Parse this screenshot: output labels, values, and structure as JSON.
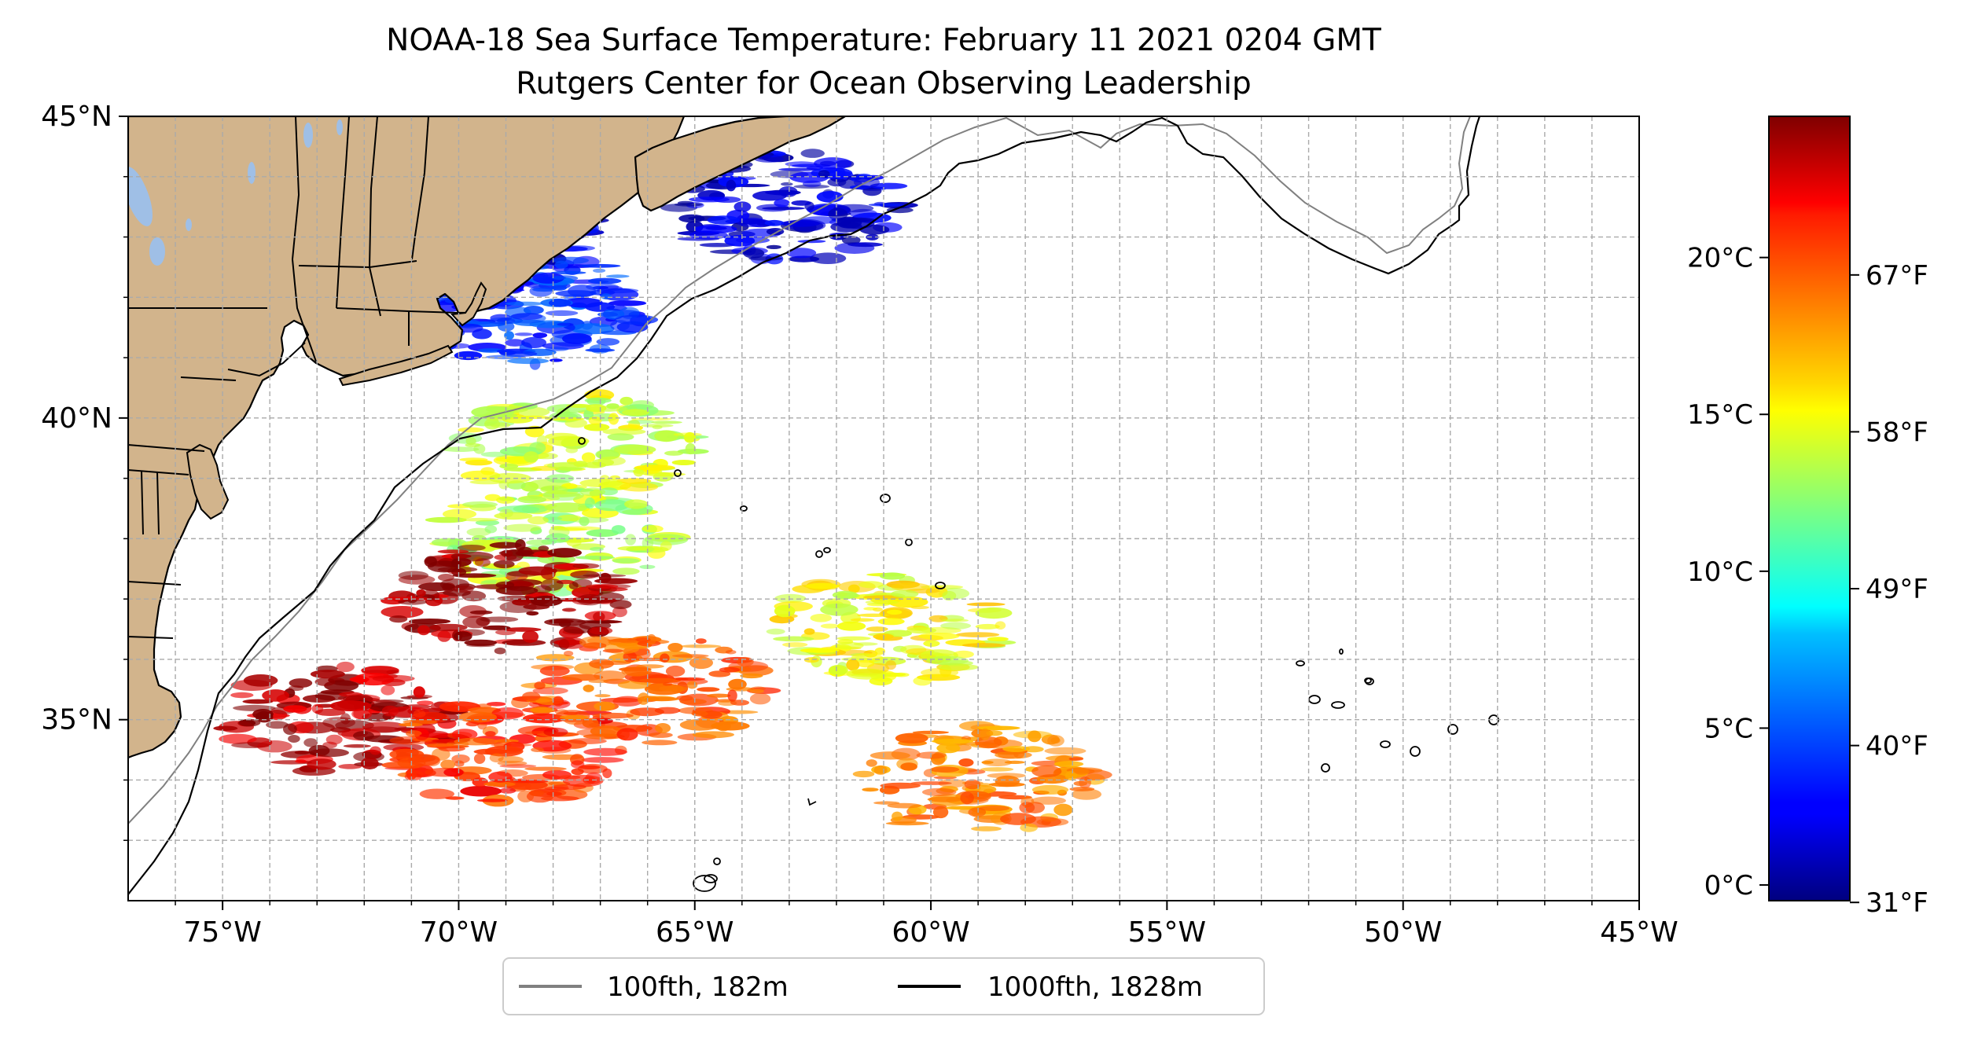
{
  "title": {
    "line1": "NOAA-18 Sea Surface Temperature: February 11 2021 0204 GMT",
    "line2": "Rutgers Center for Ocean Observing Leadership"
  },
  "map": {
    "lon_range": [
      -77,
      -45
    ],
    "lat_range": [
      32,
      45
    ],
    "x_ticks": [
      {
        "value": -75,
        "label": "75°W"
      },
      {
        "value": -70,
        "label": "70°W"
      },
      {
        "value": -65,
        "label": "65°W"
      },
      {
        "value": -60,
        "label": "60°W"
      },
      {
        "value": -55,
        "label": "55°W"
      },
      {
        "value": -50,
        "label": "50°W"
      },
      {
        "value": -45,
        "label": "45°W"
      }
    ],
    "y_ticks": [
      {
        "value": 45,
        "label": "45°N"
      },
      {
        "value": 40,
        "label": "40°N"
      },
      {
        "value": 35,
        "label": "35°N"
      }
    ],
    "grid": true,
    "colors": {
      "land": "#d2b48c",
      "shelf_100fth": "#808080",
      "slope_1000fth": "#000000"
    },
    "sst_patches": [
      {
        "lon": -69.5,
        "lat": 43.0,
        "sst": 2.0
      },
      {
        "lon": -63.0,
        "lat": 43.5,
        "sst": 1.5
      },
      {
        "lon": -68.5,
        "lat": 41.8,
        "sst": 4.0
      },
      {
        "lon": -67.5,
        "lat": 39.5,
        "sst": 14.0
      },
      {
        "lon": -68.0,
        "lat": 38.0,
        "sst": 13.5
      },
      {
        "lon": -69.0,
        "lat": 37.0,
        "sst": 24.0
      },
      {
        "lon": -72.5,
        "lat": 35.0,
        "sst": 23.5
      },
      {
        "lon": -69.0,
        "lat": 34.5,
        "sst": 20.5
      },
      {
        "lon": -66.0,
        "lat": 35.5,
        "sst": 19.5
      },
      {
        "lon": -59.0,
        "lat": 34.0,
        "sst": 18.5
      },
      {
        "lon": -61.0,
        "lat": 36.5,
        "sst": 15.0
      }
    ]
  },
  "legend": [
    {
      "label": "100fth, 182m",
      "color": "#808080"
    },
    {
      "label": "1000fth, 1828m",
      "color": "#000000"
    }
  ],
  "colorbar": {
    "range_c": [
      -0.5,
      24.5
    ],
    "celsius_ticks": [
      {
        "value": 0,
        "label": "0°C"
      },
      {
        "value": 5,
        "label": "5°C"
      },
      {
        "value": 10,
        "label": "10°C"
      },
      {
        "value": 15,
        "label": "15°C"
      },
      {
        "value": 20,
        "label": "20°C"
      }
    ],
    "fahrenheit_ticks": [
      {
        "value": 31,
        "label": "31°F"
      },
      {
        "value": 40,
        "label": "40°F"
      },
      {
        "value": 49,
        "label": "49°F"
      },
      {
        "value": 58,
        "label": "58°F"
      },
      {
        "value": 67,
        "label": "67°F"
      }
    ]
  }
}
